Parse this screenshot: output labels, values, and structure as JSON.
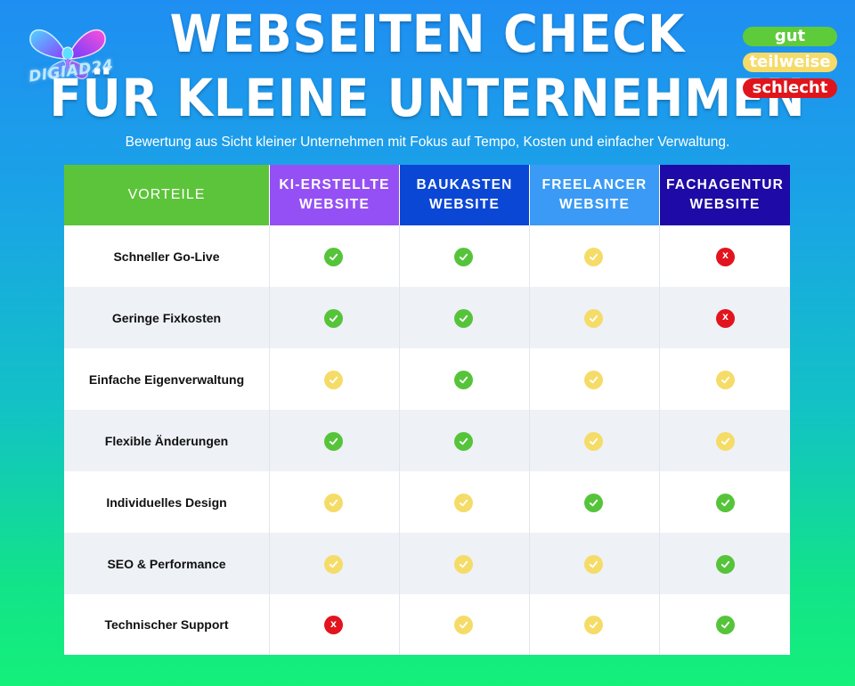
{
  "title": {
    "line1": "WEBSEITEN CHECK",
    "line2": "FÜR KLEINE UNTERNEHMEN"
  },
  "subtitle": "Bewertung aus Sicht kleiner Unternehmen mit Fokus auf Tempo, Kosten und einfacher Verwaltung.",
  "logo": {
    "text": "DIGIAD24",
    "icon": "butterfly-logo-icon"
  },
  "legend": {
    "good": "gut",
    "partial": "teilweise",
    "bad": "schlecht"
  },
  "colors": {
    "good": "#56c43a",
    "partial": "#f5dc68",
    "bad": "#e2141e"
  },
  "table": {
    "header_first": "VORTEILE",
    "columns": [
      {
        "line1": "KI-ERSTELLTE",
        "line2": "WEBSITE",
        "color": "#9550f5"
      },
      {
        "line1": "BAUKASTEN",
        "line2": "WEBSITE",
        "color": "#0b47d5"
      },
      {
        "line1": "FREELANCER",
        "line2": "WEBSITE",
        "color": "#3a9af5"
      },
      {
        "line1": "FACHAGENTUR",
        "line2": "WEBSITE",
        "color": "#1e0aa6"
      }
    ],
    "rows": [
      {
        "label": "Schneller Go-Live",
        "ratings": [
          "good",
          "good",
          "partial",
          "bad"
        ]
      },
      {
        "label": "Geringe Fixkosten",
        "ratings": [
          "good",
          "good",
          "partial",
          "bad"
        ]
      },
      {
        "label": "Einfache Eigenverwaltung",
        "ratings": [
          "partial",
          "good",
          "partial",
          "partial"
        ]
      },
      {
        "label": "Flexible Änderungen",
        "ratings": [
          "good",
          "good",
          "partial",
          "partial"
        ]
      },
      {
        "label": "Individuelles Design",
        "ratings": [
          "partial",
          "partial",
          "good",
          "good"
        ]
      },
      {
        "label": "SEO & Performance",
        "ratings": [
          "partial",
          "partial",
          "partial",
          "good"
        ]
      },
      {
        "label": "Technischer Support",
        "ratings": [
          "bad",
          "partial",
          "partial",
          "good"
        ]
      }
    ],
    "bad_mark": "X"
  }
}
